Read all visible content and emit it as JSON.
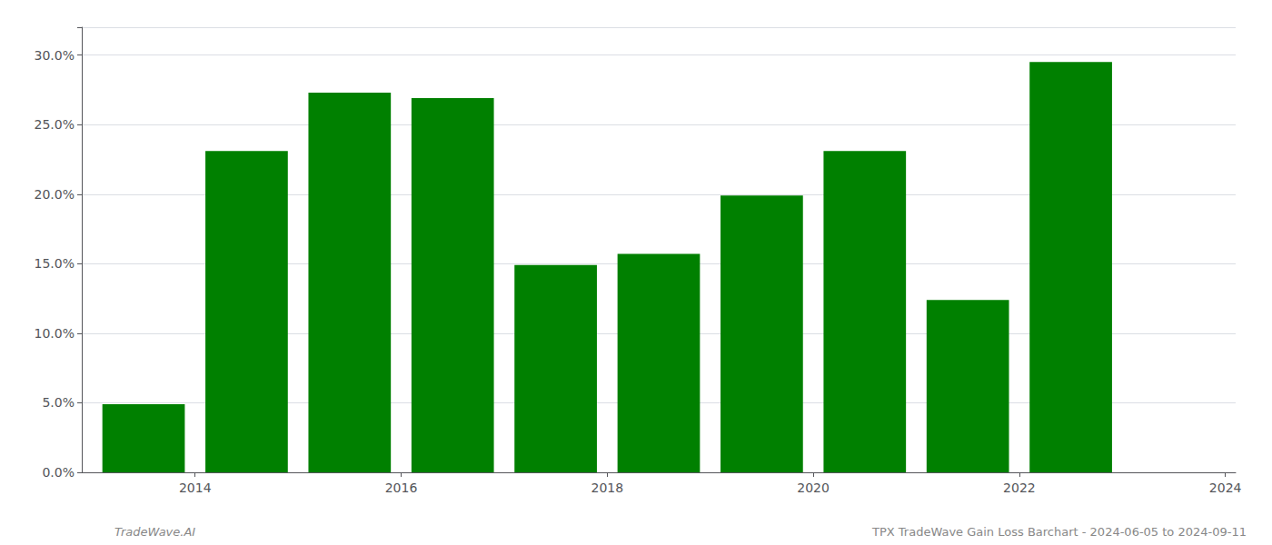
{
  "chart_data": {
    "type": "bar",
    "x": [
      2014,
      2015,
      2016,
      2017,
      2018,
      2019,
      2020,
      2021,
      2022,
      2023
    ],
    "values": [
      0.049,
      0.231,
      0.273,
      0.269,
      0.149,
      0.157,
      0.199,
      0.231,
      0.124,
      0.295
    ],
    "color": "#008000",
    "xlim": [
      2013.4,
      2024.6
    ],
    "xticks": [
      {
        "value": 2014.5,
        "label": "2014"
      },
      {
        "value": 2016.5,
        "label": "2016"
      },
      {
        "value": 2018.5,
        "label": "2018"
      },
      {
        "value": 2020.5,
        "label": "2020"
      },
      {
        "value": 2022.5,
        "label": "2022"
      },
      {
        "value": 2024.5,
        "label": "2024"
      }
    ],
    "ylim": [
      0,
      0.32
    ],
    "yticks": [
      {
        "value": 0.0,
        "label": "0.0%"
      },
      {
        "value": 0.05,
        "label": "5.0%"
      },
      {
        "value": 0.1,
        "label": "10.0%"
      },
      {
        "value": 0.15,
        "label": "15.0%"
      },
      {
        "value": 0.2,
        "label": "20.0%"
      },
      {
        "value": 0.25,
        "label": "25.0%"
      },
      {
        "value": 0.3,
        "label": "30.0%"
      }
    ],
    "grid": true,
    "annotations": [
      "TradeWave.AI",
      "TPX TradeWave Gain Loss Barchart - 2024-06-05 to 2024-09-11"
    ]
  }
}
